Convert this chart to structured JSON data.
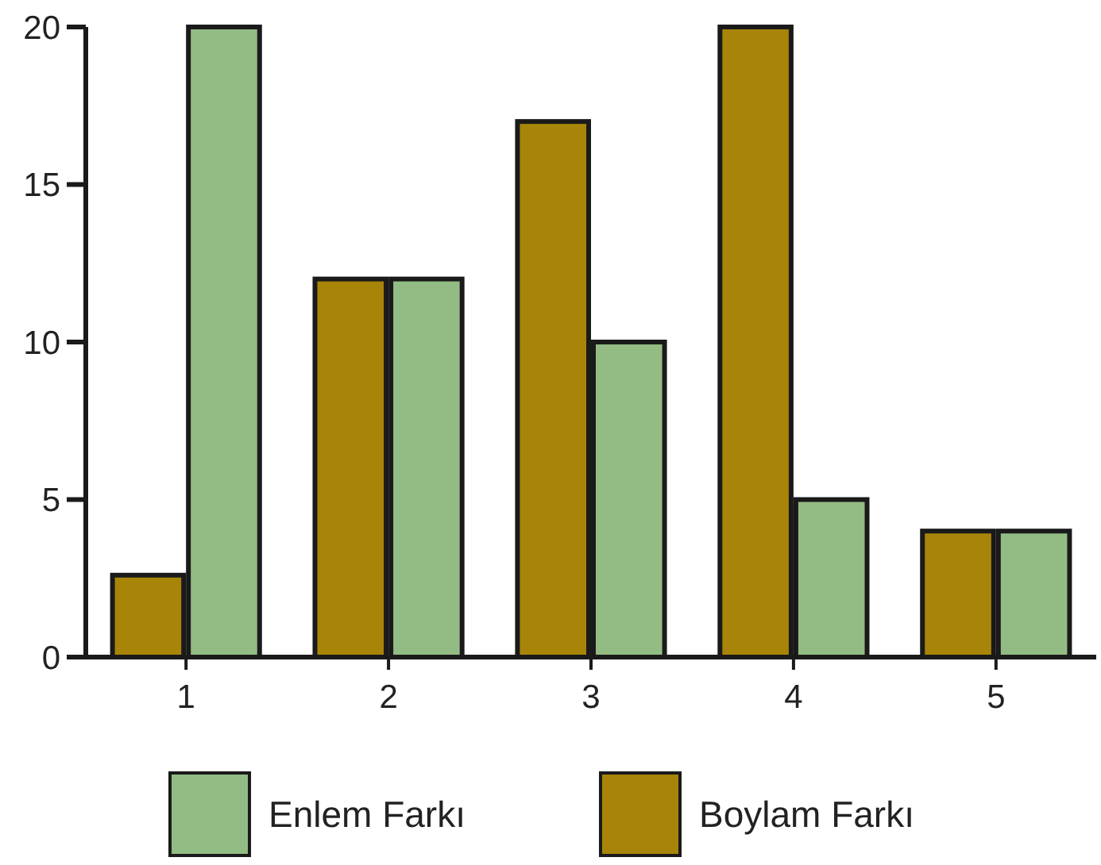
{
  "chart_data": {
    "type": "bar",
    "categories": [
      "1",
      "2",
      "3",
      "4",
      "5"
    ],
    "series": [
      {
        "name": "Boylam Farkı",
        "color": "#a88508",
        "values": [
          2.6,
          12,
          17,
          20,
          4
        ]
      },
      {
        "name": "Enlem Farkı",
        "color": "#93bc84",
        "values": [
          20,
          12,
          10,
          5,
          4
        ]
      }
    ],
    "ylim": [
      0,
      20
    ],
    "yticks": [
      0,
      5,
      10,
      15,
      20
    ],
    "legend": "bottom",
    "grid": false
  }
}
